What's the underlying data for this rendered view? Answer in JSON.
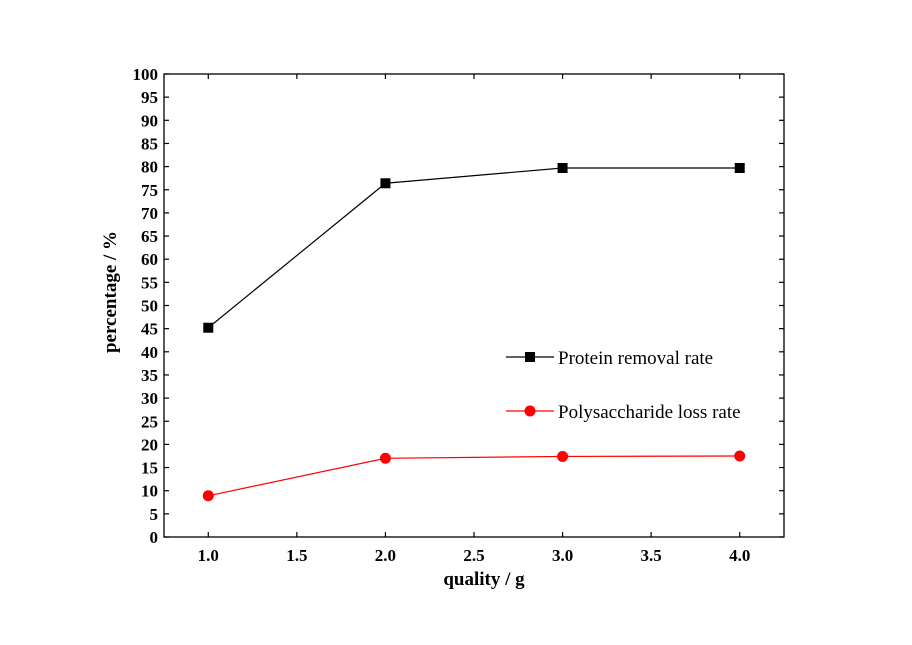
{
  "chart_data": {
    "type": "line",
    "title": "",
    "xlabel": "quality / g",
    "ylabel": "percentage / %",
    "xlim": [
      0.75,
      4.25
    ],
    "ylim": [
      0,
      100
    ],
    "xticks": [
      1.0,
      1.5,
      2.0,
      2.5,
      3.0,
      3.5,
      4.0
    ],
    "xtick_labels": [
      "1.0",
      "1.5",
      "2.0",
      "2.5",
      "3.0",
      "3.5",
      "4.0"
    ],
    "yticks": [
      0,
      5,
      10,
      15,
      20,
      25,
      30,
      35,
      40,
      45,
      50,
      55,
      60,
      65,
      70,
      75,
      80,
      85,
      90,
      95,
      100
    ],
    "ytick_labels": [
      "0",
      "5",
      "10",
      "15",
      "20",
      "25",
      "30",
      "35",
      "40",
      "45",
      "50",
      "55",
      "60",
      "65",
      "70",
      "75",
      "80",
      "85",
      "90",
      "95",
      "100"
    ],
    "grid": false,
    "legend_position": "center-right",
    "x": [
      1.0,
      2.0,
      3.0,
      4.0
    ],
    "series": [
      {
        "name": "Protein removal rate",
        "values": [
          45.2,
          76.4,
          79.7,
          79.7
        ],
        "color": "#000000",
        "marker": "square"
      },
      {
        "name": "Polysaccharide loss rate",
        "values": [
          8.9,
          17.0,
          17.4,
          17.5
        ],
        "color": "#ff0000",
        "marker": "circle"
      }
    ]
  }
}
